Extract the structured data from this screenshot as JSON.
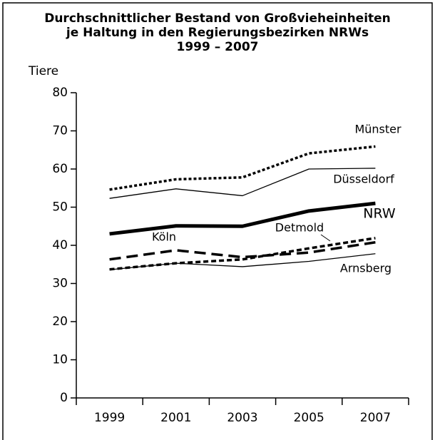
{
  "chart_data": {
    "type": "line",
    "title": [
      "Durchschnittlicher Bestand von Großvieheinheiten",
      "je Haltung in den Regierungsbezirken NRWs",
      "1999 – 2007"
    ],
    "y_label": "Tiere",
    "categories": [
      "1999",
      "2001",
      "2003",
      "2005",
      "2007"
    ],
    "ylim": [
      0,
      80
    ],
    "yticks": [
      0,
      10,
      20,
      30,
      40,
      50,
      60,
      70,
      80
    ],
    "series": [
      {
        "name": "Münster",
        "color": "#000000",
        "values": [
          54.6,
          57.3,
          57.8,
          64.1,
          65.9
        ]
      },
      {
        "name": "Düsseldorf",
        "color": "#000000",
        "values": [
          52.3,
          54.8,
          53.0,
          60.0,
          60.2
        ]
      },
      {
        "name": "NRW",
        "color": "#000000",
        "values": [
          43.0,
          45.1,
          45.0,
          49.0,
          51.0
        ]
      },
      {
        "name": "Köln",
        "color": "#000000",
        "values": [
          36.3,
          38.7,
          36.9,
          38.1,
          40.8
        ]
      },
      {
        "name": "Detmold",
        "color": "#000000",
        "values": [
          33.7,
          35.3,
          36.3,
          39.2,
          41.9
        ]
      },
      {
        "name": "Arnsberg",
        "color": "#000000",
        "values": [
          33.6,
          35.3,
          34.4,
          35.8,
          37.8
        ]
      }
    ]
  }
}
